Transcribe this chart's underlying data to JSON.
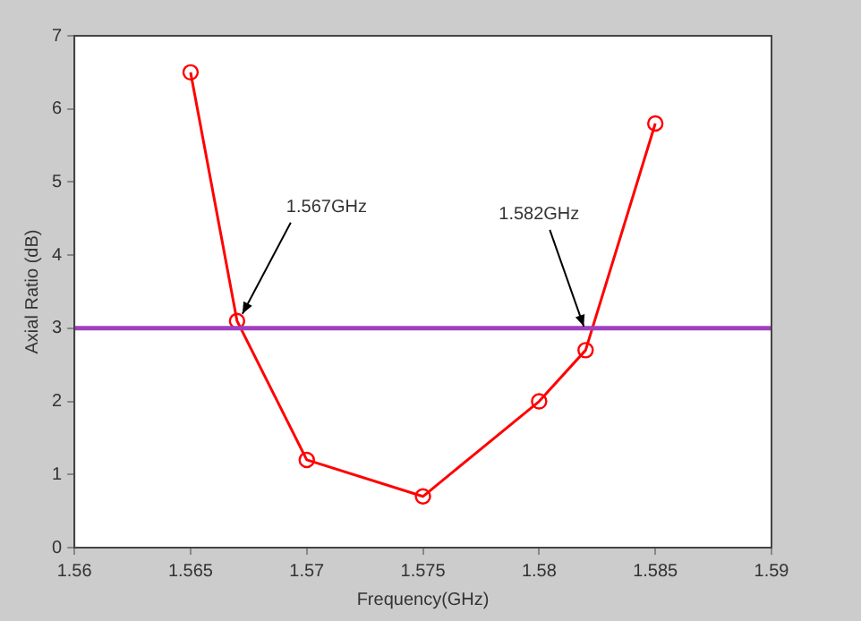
{
  "chart_data": {
    "type": "line",
    "xlabel": "Frequency(GHz)",
    "ylabel": "Axial Ratio (dB)",
    "x": [
      1.565,
      1.567,
      1.57,
      1.575,
      1.58,
      1.582,
      1.585
    ],
    "series": [
      {
        "color": "#ff0000",
        "values": [
          6.5,
          3.1,
          1.2,
          0.7,
          2.0,
          2.7,
          5.8
        ]
      }
    ],
    "xlim": [
      1.56,
      1.59
    ],
    "xticks": [
      1.56,
      1.565,
      1.57,
      1.575,
      1.58,
      1.585,
      1.59
    ],
    "ylim": [
      0,
      7
    ],
    "yticks": [
      0,
      1,
      2,
      3,
      4,
      5,
      6,
      7
    ],
    "ref_lines": [
      {
        "axis": "y",
        "value": 3,
        "color": "#a040c0"
      }
    ],
    "annotations": [
      {
        "text": "1.567GHz",
        "x": 1.567,
        "y": 3.1
      },
      {
        "text": "1.582GHz",
        "x": 1.582,
        "y": 3
      }
    ],
    "marker": "circle",
    "line_style": "solid",
    "grid": false,
    "legend": false
  }
}
